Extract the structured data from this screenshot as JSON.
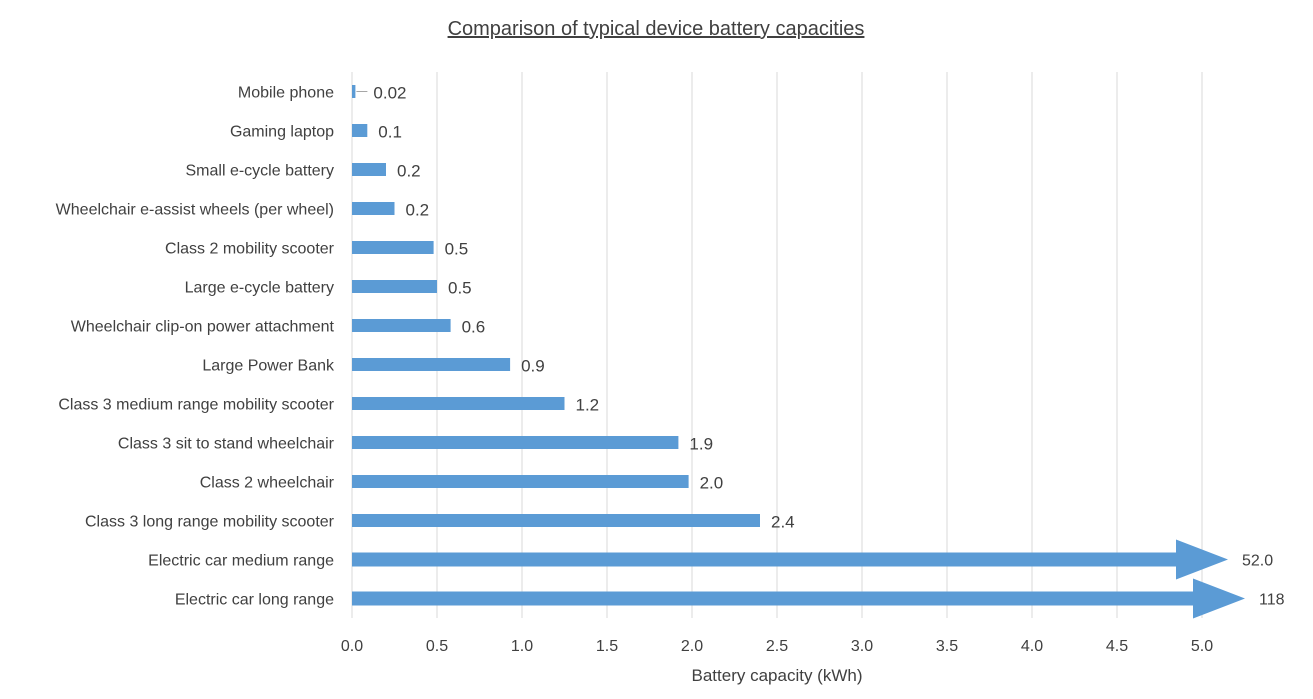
{
  "chart_data": {
    "type": "bar",
    "orientation": "horizontal",
    "title": "Comparison of typical device battery capacities",
    "xlabel": "Battery capacity (kWh)",
    "ylabel": "",
    "xlim": [
      0,
      5.0
    ],
    "xticks": [
      "0.0",
      "0.5",
      "1.0",
      "1.5",
      "2.0",
      "2.5",
      "3.0",
      "3.5",
      "4.0",
      "4.5",
      "5.0"
    ],
    "grid": "vertical",
    "legend": "none",
    "bar_color": "#5B9BD5",
    "categories": [
      "Mobile phone",
      "Gaming laptop",
      "Small e-cycle battery",
      "Wheelchair e-assist wheels (per wheel)",
      "Class 2 mobility scooter",
      "Large e-cycle battery",
      "Wheelchair clip-on power attachment",
      "Large Power Bank",
      "Class 3 medium range mobility scooter",
      "Class 3 sit to stand wheelchair",
      "Class 2 wheelchair",
      "Class 3 long range mobility scooter",
      "Electric car medium range",
      "Electric car long range"
    ],
    "values": [
      0.02,
      0.09,
      0.2,
      0.25,
      0.48,
      0.5,
      0.58,
      0.93,
      1.25,
      1.92,
      1.98,
      2.4,
      52.0,
      118
    ],
    "data_labels": [
      "0.02",
      "0.1",
      "0.2",
      "0.2",
      "0.5",
      "0.5",
      "0.6",
      "0.9",
      "1.2",
      "1.9",
      "2.0",
      "2.4",
      "52.0",
      "118"
    ],
    "off_scale_shown_as_arrow": [
      "Electric car medium range",
      "Electric car long range"
    ]
  }
}
